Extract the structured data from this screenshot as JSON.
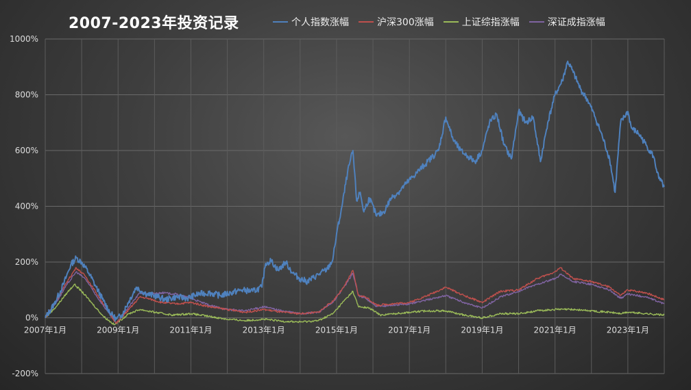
{
  "title": "2007-2023年投资记录",
  "legend": {
    "position": "top",
    "items": [
      {
        "name": "个人指数涨幅",
        "color": "#4f81bd"
      },
      {
        "name": "沪深300涨幅",
        "color": "#c0504d"
      },
      {
        "name": "上证综指涨幅",
        "color": "#9bbb59"
      },
      {
        "name": "深证成指涨幅",
        "color": "#8064a2"
      }
    ]
  },
  "chart_data": {
    "type": "line",
    "title": "2007-2023年投资记录",
    "xlabel": "",
    "ylabel": "",
    "ylim": [
      -200,
      1000
    ],
    "xlim": [
      2007.0,
      2024.0
    ],
    "y_ticks": [
      "1000%",
      "800%",
      "600%",
      "400%",
      "200%",
      "0%",
      "-200%"
    ],
    "y_tick_values": [
      1000,
      800,
      600,
      400,
      200,
      0,
      -200
    ],
    "x_ticks": [
      "2007年1月",
      "2009年1月",
      "2011年1月",
      "2013年1月",
      "2015年1月",
      "2017年1月",
      "2019年1月",
      "2021年1月",
      "2023年1月"
    ],
    "x_tick_values": [
      2007,
      2009,
      2011,
      2013,
      2015,
      2017,
      2019,
      2021,
      2023
    ],
    "grid": true,
    "series": [
      {
        "name": "个人指数涨幅",
        "color": "#4f81bd",
        "x": [
          2007.0,
          2007.25,
          2007.5,
          2007.7,
          2007.85,
          2008.0,
          2008.2,
          2008.4,
          2008.6,
          2008.8,
          2008.95,
          2009.1,
          2009.3,
          2009.5,
          2009.65,
          2009.8,
          2010.0,
          2010.3,
          2010.6,
          2010.9,
          2011.2,
          2011.5,
          2011.8,
          2012.1,
          2012.4,
          2012.7,
          2012.95,
          2013.05,
          2013.2,
          2013.4,
          2013.6,
          2013.8,
          2014.0,
          2014.2,
          2014.5,
          2014.75,
          2014.9,
          2015.0,
          2015.15,
          2015.3,
          2015.45,
          2015.55,
          2015.65,
          2015.75,
          2015.9,
          2016.1,
          2016.3,
          2016.5,
          2016.7,
          2016.9,
          2017.2,
          2017.5,
          2017.8,
          2018.0,
          2018.2,
          2018.4,
          2018.6,
          2018.8,
          2019.0,
          2019.2,
          2019.4,
          2019.6,
          2019.8,
          2020.0,
          2020.2,
          2020.4,
          2020.6,
          2020.8,
          2021.0,
          2021.2,
          2021.35,
          2021.5,
          2021.7,
          2021.9,
          2022.1,
          2022.3,
          2022.5,
          2022.65,
          2022.8,
          2023.0,
          2023.1,
          2023.3,
          2023.5,
          2023.7,
          2023.85,
          2024.0
        ],
        "values": [
          0,
          50,
          120,
          190,
          215,
          200,
          160,
          110,
          60,
          15,
          -5,
          10,
          60,
          110,
          95,
          85,
          80,
          65,
          75,
          70,
          85,
          90,
          80,
          90,
          100,
          95,
          110,
          195,
          205,
          170,
          200,
          160,
          140,
          130,
          155,
          175,
          210,
          300,
          400,
          520,
          600,
          420,
          450,
          380,
          430,
          365,
          380,
          430,
          450,
          480,
          520,
          560,
          600,
          720,
          640,
          600,
          580,
          560,
          600,
          700,
          730,
          620,
          570,
          740,
          700,
          720,
          560,
          700,
          800,
          850,
          920,
          880,
          820,
          780,
          720,
          650,
          570,
          450,
          700,
          740,
          680,
          660,
          620,
          580,
          500,
          470
        ]
      },
      {
        "name": "沪深300涨幅",
        "color": "#c0504d",
        "x": [
          2007.0,
          2007.3,
          2007.6,
          2007.85,
          2008.1,
          2008.4,
          2008.7,
          2008.95,
          2009.3,
          2009.6,
          2009.8,
          2010.2,
          2010.6,
          2011.0,
          2011.5,
          2012.0,
          2012.5,
          2013.0,
          2013.5,
          2014.0,
          2014.5,
          2014.9,
          2015.2,
          2015.45,
          2015.6,
          2015.8,
          2016.1,
          2016.5,
          2017.0,
          2017.5,
          2018.0,
          2018.5,
          2019.0,
          2019.5,
          2020.0,
          2020.5,
          2021.0,
          2021.15,
          2021.5,
          2022.0,
          2022.5,
          2022.8,
          2023.0,
          2023.5,
          2024.0
        ],
        "values": [
          0,
          60,
          130,
          180,
          150,
          90,
          30,
          -20,
          30,
          75,
          70,
          55,
          50,
          55,
          40,
          30,
          20,
          30,
          20,
          15,
          20,
          60,
          110,
          170,
          80,
          75,
          45,
          50,
          55,
          80,
          110,
          80,
          55,
          95,
          100,
          140,
          165,
          180,
          140,
          130,
          110,
          80,
          100,
          90,
          65
        ]
      },
      {
        "name": "上证综指涨幅",
        "color": "#9bbb59",
        "x": [
          2007.0,
          2007.3,
          2007.6,
          2007.8,
          2008.0,
          2008.3,
          2008.6,
          2008.9,
          2009.3,
          2009.6,
          2010.0,
          2010.5,
          2011.0,
          2011.5,
          2012.0,
          2012.5,
          2013.0,
          2013.5,
          2014.0,
          2014.5,
          2014.9,
          2015.2,
          2015.45,
          2015.6,
          2015.9,
          2016.2,
          2016.6,
          2017.0,
          2017.5,
          2018.0,
          2018.5,
          2019.0,
          2019.5,
          2020.0,
          2020.5,
          2021.0,
          2021.5,
          2022.0,
          2022.5,
          2022.8,
          2023.0,
          2023.5,
          2024.0
        ],
        "values": [
          0,
          40,
          90,
          120,
          95,
          50,
          5,
          -25,
          15,
          30,
          20,
          10,
          15,
          5,
          -5,
          -10,
          -5,
          -12,
          -15,
          -10,
          15,
          60,
          95,
          40,
          35,
          10,
          15,
          20,
          25,
          25,
          10,
          0,
          15,
          15,
          25,
          30,
          30,
          25,
          20,
          15,
          20,
          15,
          10
        ]
      },
      {
        "name": "深证成指涨幅",
        "color": "#8064a2",
        "x": [
          2007.0,
          2007.3,
          2007.6,
          2007.85,
          2008.1,
          2008.4,
          2008.7,
          2008.95,
          2009.3,
          2009.6,
          2009.8,
          2010.2,
          2010.6,
          2011.0,
          2011.5,
          2012.0,
          2012.5,
          2013.0,
          2013.5,
          2014.0,
          2014.5,
          2014.9,
          2015.2,
          2015.45,
          2015.6,
          2015.8,
          2016.1,
          2016.5,
          2017.0,
          2017.5,
          2018.0,
          2018.5,
          2019.0,
          2019.5,
          2020.0,
          2020.5,
          2021.0,
          2021.15,
          2021.5,
          2022.0,
          2022.5,
          2022.8,
          2023.0,
          2023.5,
          2024.0
        ],
        "values": [
          0,
          55,
          120,
          165,
          140,
          80,
          25,
          -20,
          40,
          90,
          85,
          90,
          85,
          70,
          45,
          30,
          25,
          40,
          25,
          15,
          20,
          55,
          110,
          160,
          80,
          70,
          40,
          45,
          50,
          65,
          80,
          55,
          35,
          75,
          95,
          120,
          140,
          155,
          130,
          120,
          100,
          70,
          85,
          75,
          50
        ]
      }
    ]
  }
}
